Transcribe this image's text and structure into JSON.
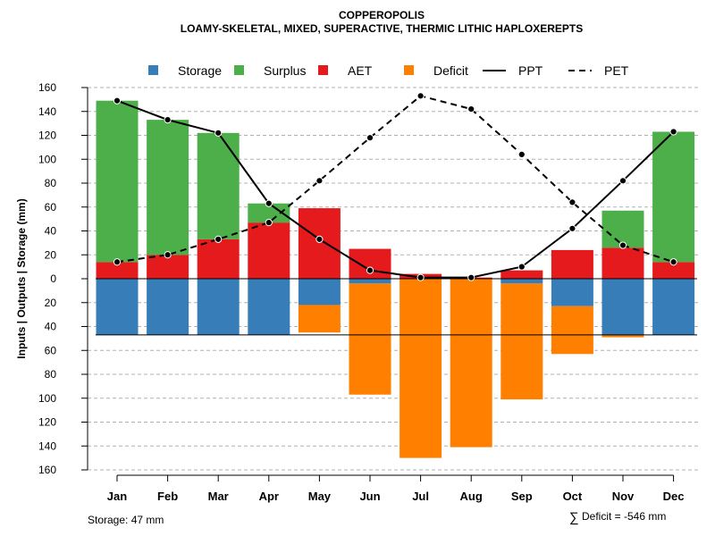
{
  "chart_data": {
    "type": "bar",
    "title": "COPPEROPOLIS",
    "subtitle": "LOAMY-SKELETAL, MIXED, SUPERACTIVE, THERMIC LITHIC HAPLOXEREPTS",
    "ylabel": "Inputs | Outputs | Storage    (mm)",
    "ylim": [
      -160,
      160
    ],
    "yticks": [
      160,
      140,
      120,
      100,
      80,
      60,
      40,
      20,
      0,
      20,
      40,
      60,
      80,
      100,
      120,
      140,
      160
    ],
    "grid": true,
    "legend_position": "top",
    "categories": [
      "Jan",
      "Feb",
      "Mar",
      "Apr",
      "May",
      "Jun",
      "Jul",
      "Aug",
      "Sep",
      "Oct",
      "Nov",
      "Dec"
    ],
    "legend": [
      {
        "name": "Storage",
        "kind": "square",
        "color": "#377eb8"
      },
      {
        "name": "Surplus",
        "kind": "square",
        "color": "#4daf4a"
      },
      {
        "name": "AET",
        "kind": "square",
        "color": "#e41a1c"
      },
      {
        "name": "Deficit",
        "kind": "square",
        "color": "#ff7f00"
      },
      {
        "name": "PPT",
        "kind": "solid-line",
        "color": "#000000"
      },
      {
        "name": "PET",
        "kind": "dashed-line",
        "color": "#000000"
      }
    ],
    "series": [
      {
        "name": "AET",
        "color": "#e41a1c",
        "values": [
          14,
          20,
          33,
          47,
          59,
          25,
          4,
          1,
          7,
          24,
          26,
          14
        ]
      },
      {
        "name": "Surplus",
        "color": "#4daf4a",
        "values": [
          135,
          113,
          89,
          16,
          0,
          0,
          0,
          0,
          0,
          0,
          31,
          109
        ]
      },
      {
        "name": "Storage",
        "color": "#377eb8",
        "values": [
          47,
          47,
          47,
          47,
          22,
          4,
          0,
          0,
          4,
          23,
          47,
          47
        ]
      },
      {
        "name": "Deficit",
        "color": "#ff7f00",
        "values": [
          0,
          0,
          0,
          0,
          23,
          93,
          150,
          141,
          97,
          40,
          2,
          0
        ]
      },
      {
        "name": "PPT",
        "color": "#000000",
        "values": [
          149,
          133,
          122,
          63,
          33,
          7,
          1,
          1,
          10,
          42,
          82,
          123
        ]
      },
      {
        "name": "PET",
        "color": "#000000",
        "values": [
          14,
          20,
          33,
          47,
          82,
          118,
          153,
          142,
          104,
          64,
          28,
          14
        ]
      }
    ],
    "storage_capacity": 47
  },
  "footer": {
    "storage_label": "Storage: 47 mm",
    "deficit_symbol": "∑",
    "deficit_label": "Deficit = -546 mm"
  }
}
